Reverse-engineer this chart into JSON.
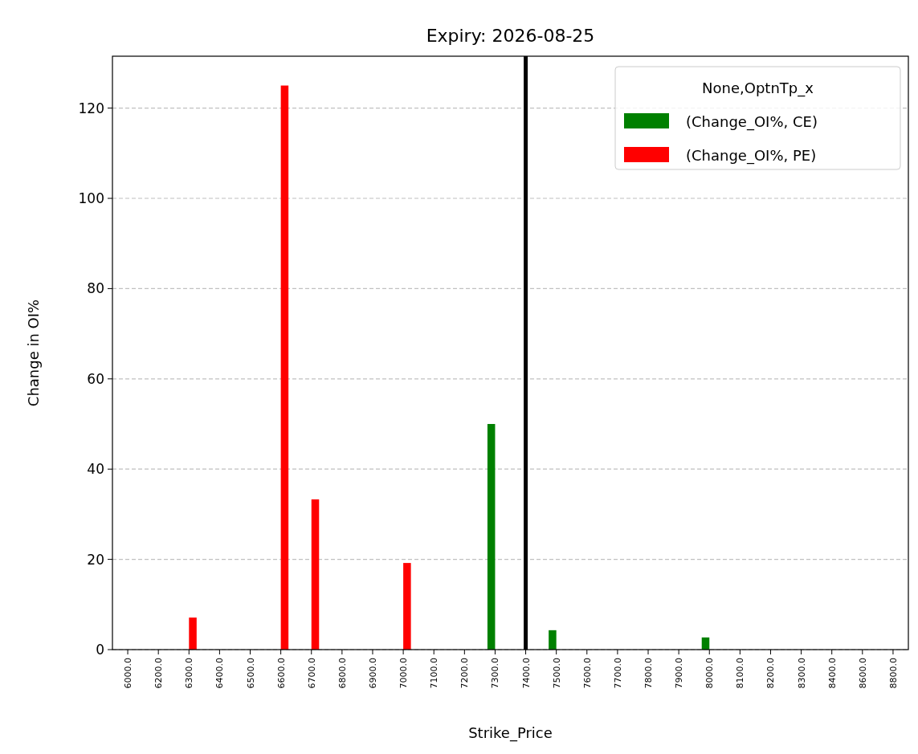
{
  "chart_data": {
    "type": "bar",
    "title": "Expiry: 2026-08-25",
    "xlabel": "Strike_Price",
    "ylabel": "Change in OI%",
    "legend_title": "None,OptnTp_x",
    "categories": [
      "6000.0",
      "6200.0",
      "6300.0",
      "6400.0",
      "6500.0",
      "6600.0",
      "6700.0",
      "6800.0",
      "6900.0",
      "7000.0",
      "7100.0",
      "7200.0",
      "7300.0",
      "7400.0",
      "7500.0",
      "7600.0",
      "7700.0",
      "7800.0",
      "7900.0",
      "8000.0",
      "8100.0",
      "8200.0",
      "8300.0",
      "8400.0",
      "8600.0",
      "8800.0"
    ],
    "series": [
      {
        "name": "(Change_OI%, CE)",
        "color": "#008000",
        "values": [
          0,
          0,
          0,
          0,
          0,
          0,
          0,
          0,
          0,
          0,
          0,
          0,
          50,
          0,
          4.3,
          0,
          0,
          0,
          0,
          2.7,
          0,
          0,
          0,
          0,
          0,
          0
        ]
      },
      {
        "name": "(Change_OI%, PE)",
        "color": "#ff0000",
        "values": [
          0,
          0,
          7.1,
          0,
          0,
          125,
          33.3,
          0,
          0,
          19.2,
          0,
          0,
          0,
          0,
          0,
          0,
          0,
          0,
          0,
          0,
          0,
          0,
          0,
          0,
          0,
          0
        ]
      }
    ],
    "ylim": [
      0,
      131.5
    ],
    "yticks": [
      0,
      20,
      40,
      60,
      80,
      100,
      120
    ],
    "grid": "y",
    "legend": "top right",
    "ref_lines": [
      {
        "axis": "x",
        "value": "7400.0",
        "color": "#000000"
      }
    ]
  }
}
